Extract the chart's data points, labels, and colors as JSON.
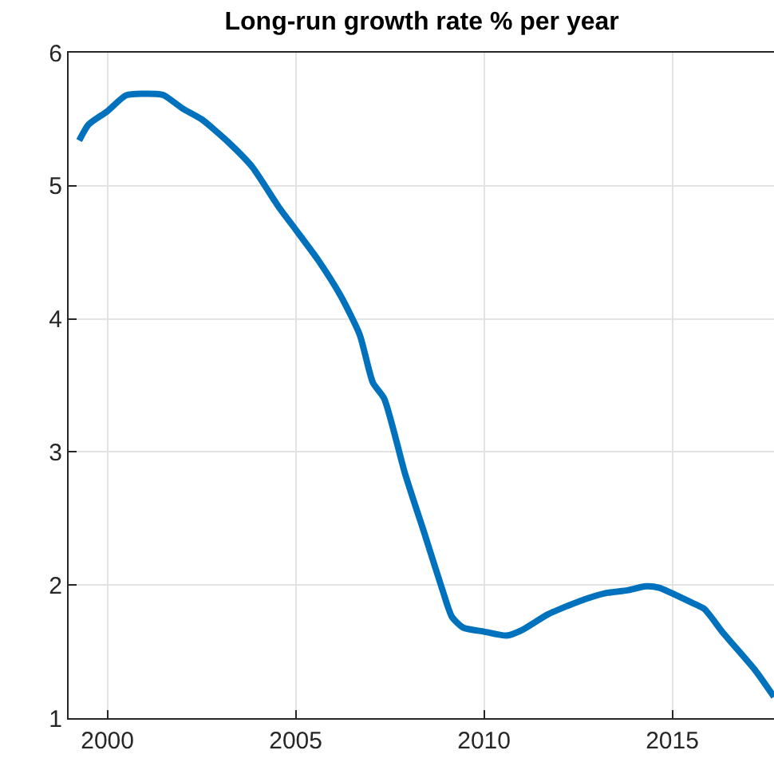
{
  "chart_data": {
    "type": "line",
    "title": "Long-run growth rate % per year",
    "x": [
      1999.25,
      1999.5,
      2000.0,
      2000.5,
      2001.3,
      2001.5,
      2002.0,
      2002.5,
      2003.2,
      2003.85,
      2004.55,
      2005.0,
      2005.6,
      2006.2,
      2006.7,
      2007.05,
      2007.35,
      2007.9,
      2008.45,
      2008.9,
      2009.15,
      2009.45,
      2010.0,
      2010.6,
      2011.0,
      2011.7,
      2012.55,
      2013.25,
      2013.8,
      2014.3,
      2014.65,
      2015.5,
      2015.85,
      2016.35,
      2017.2,
      2017.7
    ],
    "series": [
      {
        "color": "#0072bd",
        "values": [
          5.34,
          5.46,
          5.56,
          5.68,
          5.69,
          5.68,
          5.58,
          5.5,
          5.33,
          5.14,
          4.84,
          4.67,
          4.44,
          4.17,
          3.88,
          3.52,
          3.4,
          2.84,
          2.36,
          1.96,
          1.76,
          1.68,
          1.65,
          1.62,
          1.66,
          1.78,
          1.88,
          1.94,
          1.96,
          1.99,
          1.98,
          1.87,
          1.82,
          1.64,
          1.36,
          1.16
        ]
      }
    ],
    "xlim": [
      1998.97,
      2017.7
    ],
    "xticks": [
      2000,
      2005,
      2010,
      2015
    ],
    "ylim": [
      1,
      6
    ],
    "yticks": [
      1,
      2,
      3,
      4,
      5,
      6
    ],
    "grid": true,
    "marker": "none",
    "line_style": "solid"
  }
}
